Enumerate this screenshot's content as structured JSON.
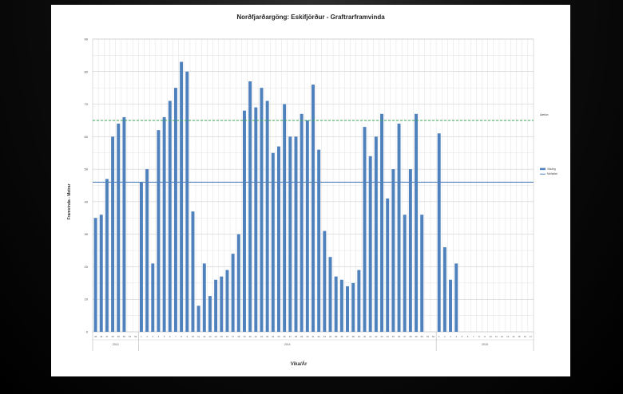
{
  "chart_data": {
    "type": "bar",
    "title": "Norðfjarðargöng: Eskifjörður - Graftrarframvinda",
    "xlabel": "Vika/Ár",
    "ylabel": "Framvinda - Metrar",
    "ylim": [
      0,
      90
    ],
    "yticks": [
      0,
      10,
      20,
      30,
      40,
      50,
      60,
      70,
      80,
      90
    ],
    "grid": true,
    "legend_position": "right",
    "categories": [
      "45",
      "46",
      "47",
      "48",
      "49",
      "50",
      "51",
      "52",
      "1",
      "2",
      "3",
      "4",
      "5",
      "6",
      "7",
      "8",
      "9",
      "10",
      "11",
      "12",
      "13",
      "14",
      "15",
      "16",
      "17",
      "18",
      "19",
      "20",
      "21",
      "22",
      "23",
      "24",
      "25",
      "26",
      "27",
      "28",
      "29",
      "30",
      "31",
      "32",
      "33",
      "34",
      "35",
      "36",
      "37",
      "38",
      "39",
      "40",
      "41",
      "42",
      "43",
      "44",
      "45",
      "46",
      "47",
      "48",
      "49",
      "50",
      "51",
      "52",
      "1",
      "2",
      "3",
      "4",
      "5",
      "6",
      "7",
      "8",
      "9",
      "10",
      "11",
      "12",
      "13",
      "14",
      "15",
      "16",
      "17"
    ],
    "year_groups": [
      {
        "label": "2013",
        "start": 0,
        "count": 8
      },
      {
        "label": "2014",
        "start": 8,
        "count": 52
      },
      {
        "label": "2015",
        "start": 60,
        "count": 17
      }
    ],
    "series": [
      {
        "name": "Vikuleg",
        "type": "bar",
        "values": [
          35,
          36,
          47,
          60,
          64,
          66,
          null,
          null,
          46,
          50,
          21,
          62,
          66,
          71,
          75,
          83,
          80,
          37,
          8,
          21,
          11,
          16,
          17,
          19,
          24,
          30,
          68,
          77,
          69,
          75,
          71,
          55,
          57,
          70,
          60,
          60,
          67,
          65,
          76,
          56,
          31,
          23,
          17,
          16,
          14,
          15,
          19,
          63,
          54,
          60,
          67,
          41,
          50,
          64,
          36,
          50,
          67,
          36,
          null,
          null,
          61,
          26,
          16,
          21,
          null,
          null,
          null,
          null,
          null,
          null,
          null,
          null,
          null,
          null,
          null,
          null,
          null
        ]
      },
      {
        "name": "Meðaltal",
        "type": "line",
        "value": 46
      },
      {
        "name": "Áætlun",
        "type": "line",
        "dashed": true,
        "value": 65
      }
    ],
    "colors": {
      "bar": "#4f81bd",
      "average": "#4f81bd",
      "target": "#3aa655"
    }
  }
}
